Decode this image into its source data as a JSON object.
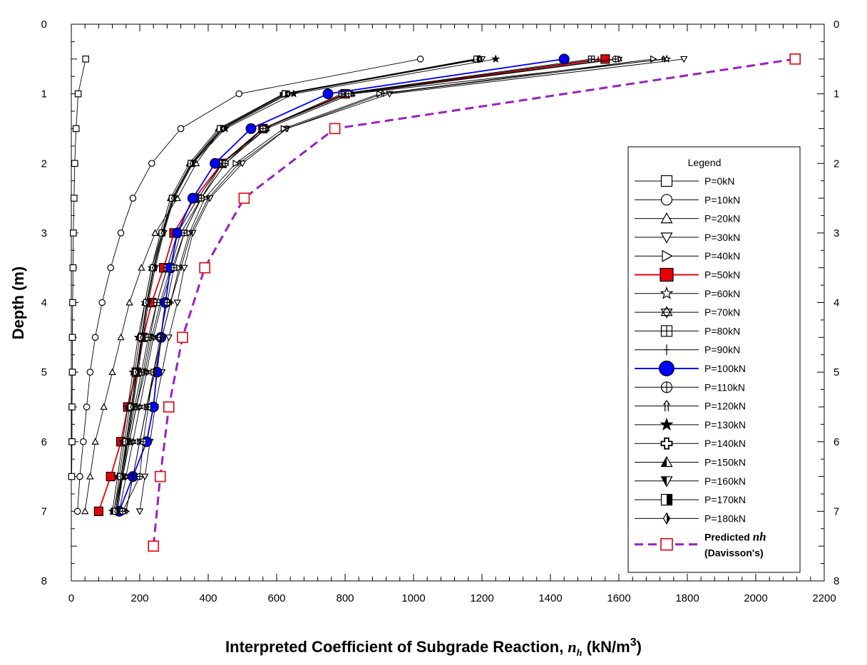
{
  "chart_data": {
    "type": "line",
    "title": "",
    "xlabel": "Interpreted Coefficient of Subgrade Reaction, ",
    "xlabel_symbol": "n",
    "xlabel_sub": "h",
    "xlabel_unit": " (kN/m",
    "xlabel_exp": "3",
    "xlabel_close": ")",
    "ylabel": "Depth (m)",
    "xlim": [
      0,
      2200
    ],
    "ylim": [
      0,
      8
    ],
    "y_inverted": true,
    "x_ticks": [
      "0",
      "200",
      "400",
      "600",
      "800",
      "1000",
      "1200",
      "1400",
      "1600",
      "1800",
      "2000",
      "2200"
    ],
    "y_ticks": [
      "0",
      "1",
      "2",
      "3",
      "4",
      "5",
      "6",
      "7",
      "8"
    ],
    "legend": {
      "title": "Legend",
      "placement": "right"
    },
    "series": [
      {
        "name": "P=0kN",
        "marker": "square-open",
        "color": "#000000",
        "x": [
          42,
          20,
          14,
          10,
          8,
          6,
          5,
          4,
          3,
          3,
          2,
          2,
          1
        ],
        "y": [
          0.5,
          1,
          1.5,
          2,
          2.5,
          3,
          3.5,
          4,
          4.5,
          5,
          5.5,
          6,
          6.5
        ]
      },
      {
        "name": "P=10kN",
        "marker": "circle-open",
        "color": "#000000",
        "x": [
          1020,
          490,
          320,
          235,
          180,
          145,
          115,
          90,
          70,
          55,
          45,
          35,
          25,
          18
        ],
        "y": [
          0.5,
          1,
          1.5,
          2,
          2.5,
          3,
          3.5,
          4,
          4.5,
          5,
          5.5,
          6,
          6.5,
          7
        ]
      },
      {
        "name": "P=20kN",
        "marker": "triangle-open",
        "color": "#000000",
        "x": [
          1190,
          620,
          440,
          365,
          310,
          245,
          205,
          170,
          145,
          120,
          95,
          70,
          55,
          40
        ],
        "y": [
          0.5,
          1,
          1.5,
          2,
          2.5,
          3,
          3.5,
          4,
          4.5,
          5,
          5.5,
          6,
          6.5,
          7
        ]
      },
      {
        "name": "P=30kN",
        "marker": "triangle-down-open",
        "color": "#000000",
        "x": [
          1790,
          930,
          630,
          500,
          405,
          355,
          330,
          310,
          285,
          265,
          245,
          230,
          215,
          200
        ],
        "y": [
          0.5,
          1,
          1.5,
          2,
          2.5,
          3,
          3.5,
          4,
          4.5,
          5,
          5.5,
          6,
          6.5,
          7
        ]
      },
      {
        "name": "P=40kN",
        "marker": "triangle-right-open",
        "color": "#000000",
        "x": [
          1700,
          900,
          620,
          480,
          390,
          345,
          315,
          290,
          265,
          240,
          220,
          200,
          180,
          160
        ],
        "y": [
          0.5,
          1,
          1.5,
          2,
          2.5,
          3,
          3.5,
          4,
          4.5,
          5,
          5.5,
          6,
          6.5,
          7
        ]
      },
      {
        "name": "P=50kN",
        "marker": "square-filled",
        "color": "#e8000b",
        "x": [
          1560,
          800,
          560,
          440,
          360,
          300,
          270,
          235,
          210,
          190,
          165,
          145,
          115,
          80
        ],
        "y": [
          0.5,
          1,
          1.5,
          2,
          2.5,
          3,
          3.5,
          4,
          4.5,
          5,
          5.5,
          6,
          6.5,
          7
        ]
      },
      {
        "name": "P=60kN",
        "marker": "star-open",
        "color": "#000000",
        "x": [
          1740,
          820,
          570,
          440,
          380,
          320,
          290,
          260,
          235,
          215,
          190,
          170,
          150,
          130
        ],
        "y": [
          0.5,
          1,
          1.5,
          2,
          2.5,
          3,
          3.5,
          4,
          4.5,
          5,
          5.5,
          6,
          6.5,
          7
        ]
      },
      {
        "name": "P=70kN",
        "marker": "star6-open",
        "color": "#000000",
        "x": [
          1600,
          820,
          570,
          450,
          380,
          330,
          295,
          265,
          240,
          220,
          200,
          180,
          160,
          140
        ],
        "y": [
          0.5,
          1,
          1.5,
          2,
          2.5,
          3,
          3.5,
          4,
          4.5,
          5,
          5.5,
          6,
          6.5,
          7
        ]
      },
      {
        "name": "P=80kN",
        "marker": "square-cross",
        "color": "#000000",
        "x": [
          1520,
          790,
          560,
          440,
          370,
          310,
          280,
          250,
          225,
          205,
          185,
          165,
          145,
          125
        ],
        "y": [
          0.5,
          1,
          1.5,
          2,
          2.5,
          3,
          3.5,
          4,
          4.5,
          5,
          5.5,
          6,
          6.5,
          7
        ]
      },
      {
        "name": "P=90kN",
        "marker": "plus-thin",
        "color": "#000000",
        "x": [
          1540,
          800,
          560,
          440,
          370,
          310,
          280,
          250,
          230,
          210,
          190,
          170,
          150,
          130
        ],
        "y": [
          0.5,
          1,
          1.5,
          2,
          2.5,
          3,
          3.5,
          4,
          4.5,
          5,
          5.5,
          6,
          6.5,
          7
        ]
      },
      {
        "name": "P=100kN",
        "marker": "circle-filled",
        "color": "#0000ff",
        "x": [
          1440,
          750,
          525,
          420,
          355,
          310,
          290,
          275,
          262,
          250,
          240,
          220,
          180,
          140
        ],
        "y": [
          0.5,
          1,
          1.5,
          2,
          2.5,
          3,
          3.5,
          4,
          4.5,
          5,
          5.5,
          6,
          6.5,
          7
        ]
      },
      {
        "name": "P=110kN",
        "marker": "circle-cross",
        "color": "#000000",
        "x": [
          1590,
          810,
          560,
          450,
          380,
          330,
          300,
          280,
          260,
          240,
          225,
          210,
          200,
          150
        ],
        "y": [
          0.5,
          1,
          1.5,
          2,
          2.5,
          3,
          3.5,
          4,
          4.5,
          5,
          5.5,
          6,
          6.5,
          7
        ]
      },
      {
        "name": "P=120kN",
        "marker": "arrow-up",
        "color": "#000000",
        "x": [
          1730,
          910,
          630,
          490,
          400,
          350,
          320,
          290,
          265,
          245,
          220,
          200,
          180,
          160
        ],
        "y": [
          0.5,
          1,
          1.5,
          2,
          2.5,
          3,
          3.5,
          4,
          4.5,
          5,
          5.5,
          6,
          6.5,
          7
        ]
      },
      {
        "name": "P=130kN",
        "marker": "star-filled",
        "color": "#000000",
        "x": [
          1240,
          650,
          450,
          355,
          300,
          265,
          235,
          215,
          195,
          180,
          165,
          150,
          135,
          120
        ],
        "y": [
          0.5,
          1,
          1.5,
          2,
          2.5,
          3,
          3.5,
          4,
          4.5,
          5,
          5.5,
          6,
          6.5,
          7
        ]
      },
      {
        "name": "P=140kN",
        "marker": "plus-open",
        "color": "#000000",
        "x": [
          1190,
          620,
          440,
          350,
          295,
          265,
          240,
          220,
          205,
          190,
          175,
          160,
          145,
          130
        ],
        "y": [
          0.5,
          1,
          1.5,
          2,
          2.5,
          3,
          3.5,
          4,
          4.5,
          5,
          5.5,
          6,
          6.5,
          7
        ]
      },
      {
        "name": "P=150kN",
        "marker": "triangle-half",
        "color": "#000000",
        "x": [
          1180,
          620,
          430,
          345,
          290,
          260,
          235,
          215,
          200,
          185,
          170,
          155,
          140,
          125
        ],
        "y": [
          0.5,
          1,
          1.5,
          2,
          2.5,
          3,
          3.5,
          4,
          4.5,
          5,
          5.5,
          6,
          6.5,
          7
        ]
      },
      {
        "name": "P=160kN",
        "marker": "triangle-down-half",
        "color": "#000000",
        "x": [
          1200,
          630,
          440,
          355,
          300,
          270,
          245,
          225,
          210,
          195,
          180,
          165,
          150,
          135
        ],
        "y": [
          0.5,
          1,
          1.5,
          2,
          2.5,
          3,
          3.5,
          4,
          4.5,
          5,
          5.5,
          6,
          6.5,
          7
        ]
      },
      {
        "name": "P=170kN",
        "marker": "square-half",
        "color": "#000000",
        "x": [
          1185,
          625,
          435,
          350,
          295,
          265,
          240,
          220,
          205,
          190,
          175,
          160,
          145,
          130
        ],
        "y": [
          0.5,
          1,
          1.5,
          2,
          2.5,
          3,
          3.5,
          4,
          4.5,
          5,
          5.5,
          6,
          6.5,
          7
        ]
      },
      {
        "name": "P=180kN",
        "marker": "diamond-half",
        "color": "#000000",
        "x": [
          1195,
          635,
          445,
          352,
          298,
          268,
          242,
          222,
          207,
          192,
          178,
          162,
          147,
          132
        ],
        "y": [
          0.5,
          1,
          1.5,
          2,
          2.5,
          3,
          3.5,
          4,
          4.5,
          5,
          5.5,
          6,
          6.5,
          7
        ]
      },
      {
        "name": "Predicted nh (Davisson's)",
        "legend_label_1": "Predicted ",
        "legend_label_italic": "nh",
        "legend_label_2": "(Davisson's)",
        "marker": "square-open-red",
        "color": "#9b1fc8",
        "dashed": true,
        "x": [
          2115,
          770,
          505,
          390,
          325,
          285,
          260,
          240
        ],
        "y": [
          0.5,
          1.5,
          2.5,
          3.5,
          4.5,
          5.5,
          6.5,
          7.5
        ]
      }
    ]
  }
}
